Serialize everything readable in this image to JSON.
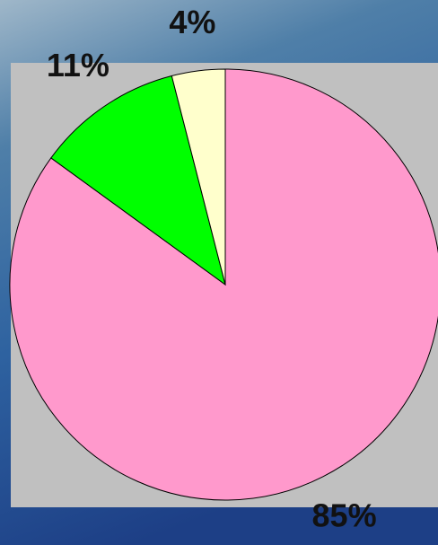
{
  "chart_data": {
    "type": "pie",
    "categories": [
      null,
      null,
      null
    ],
    "values": [
      85,
      11,
      4
    ],
    "value_labels": [
      "85%",
      "11%",
      "4%"
    ],
    "colors": [
      "#ff99cc",
      "#00ff00",
      "#ffffcc"
    ]
  }
}
